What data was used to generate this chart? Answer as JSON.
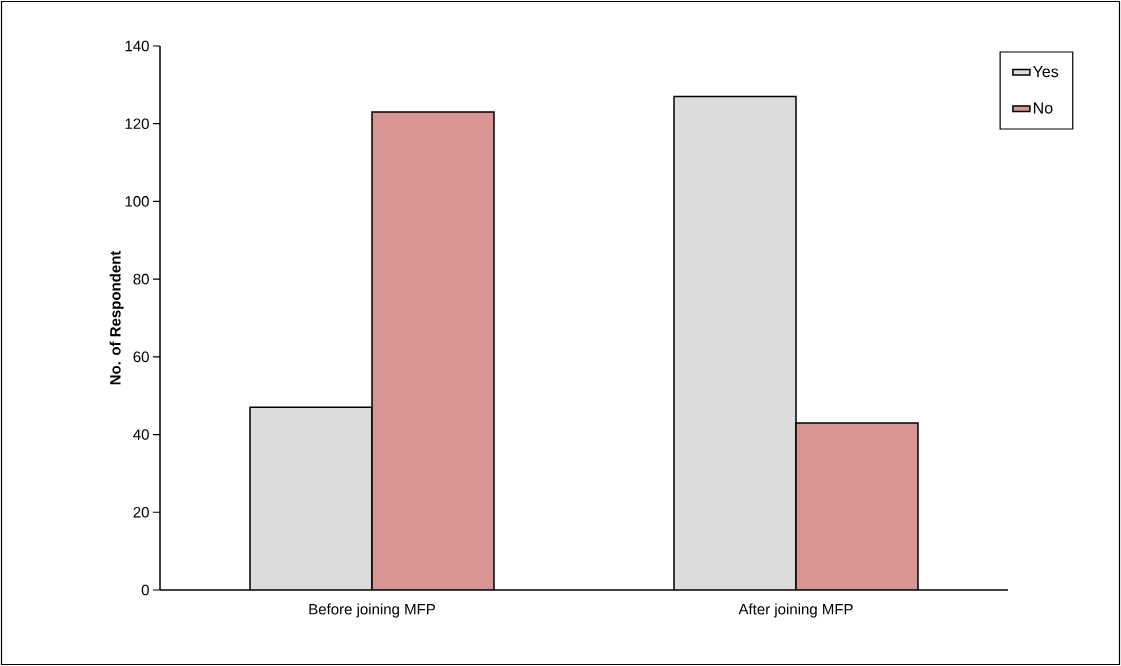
{
  "chart_data": {
    "type": "bar",
    "ylabel": "No. of Respondent",
    "categories": [
      "Before joining MFP",
      "After joining MFP"
    ],
    "series": [
      {
        "name": "Yes",
        "color": "#dcdcdc",
        "values": [
          47,
          127
        ]
      },
      {
        "name": "No",
        "color": "#d99594",
        "values": [
          123,
          43
        ]
      }
    ],
    "ylim": [
      0,
      140
    ],
    "yticks": [
      0,
      20,
      40,
      60,
      80,
      100,
      120,
      140
    ],
    "legend": "top right"
  }
}
